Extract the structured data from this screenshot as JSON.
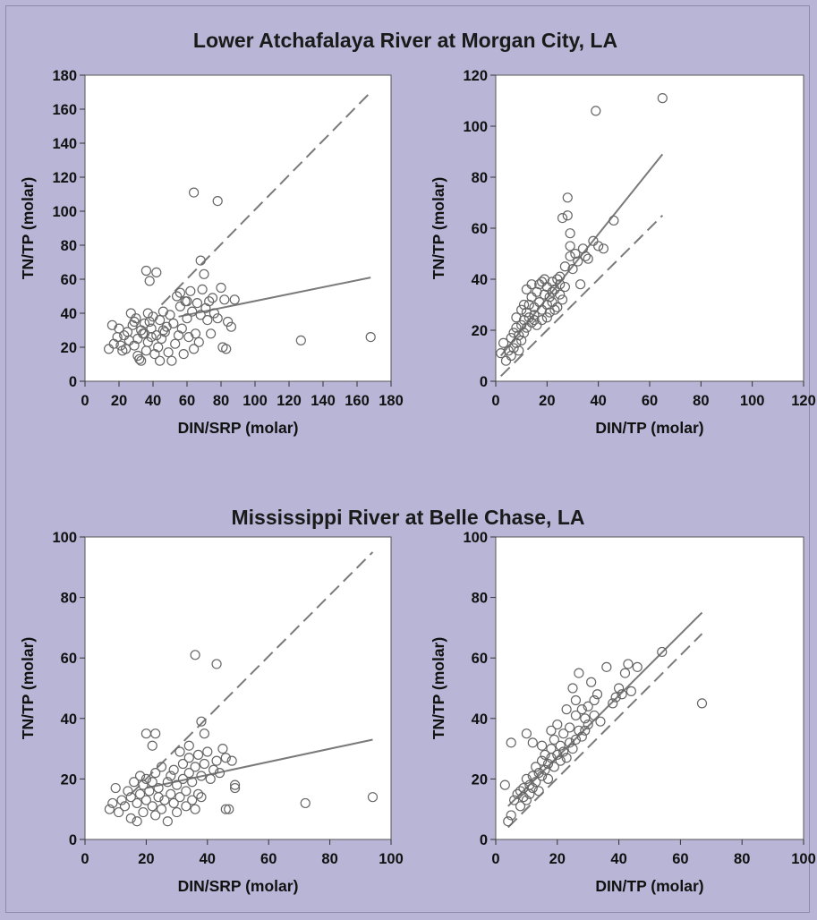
{
  "sections": [
    {
      "title": "Lower Atchafalaya River at Morgan City, LA"
    },
    {
      "title": "Mississippi River at Belle Chase, LA"
    }
  ],
  "chart_data": [
    {
      "type": "scatter",
      "xlabel": "DIN/SRP (molar)",
      "ylabel": "TN/TP (molar)",
      "xlim": [
        0,
        180
      ],
      "ylim": [
        0,
        180
      ],
      "xticks": [
        0,
        20,
        40,
        60,
        80,
        100,
        120,
        140,
        160,
        180
      ],
      "yticks": [
        0,
        20,
        40,
        60,
        80,
        100,
        120,
        140,
        160,
        180
      ],
      "grid": false,
      "points": [
        [
          14,
          19
        ],
        [
          17,
          22
        ],
        [
          19,
          26
        ],
        [
          21,
          21
        ],
        [
          23,
          27
        ],
        [
          24,
          19
        ],
        [
          16,
          33
        ],
        [
          20,
          31
        ],
        [
          25,
          29
        ],
        [
          26,
          24
        ],
        [
          28,
          33
        ],
        [
          29,
          21
        ],
        [
          30,
          37
        ],
        [
          31,
          15
        ],
        [
          32,
          13
        ],
        [
          33,
          30
        ],
        [
          34,
          28
        ],
        [
          35,
          34
        ],
        [
          36,
          18
        ],
        [
          37,
          23
        ],
        [
          38,
          35
        ],
        [
          39,
          31
        ],
        [
          40,
          38
        ],
        [
          41,
          16
        ],
        [
          42,
          27
        ],
        [
          43,
          20
        ],
        [
          44,
          36
        ],
        [
          45,
          25
        ],
        [
          46,
          41
        ],
        [
          47,
          29
        ],
        [
          48,
          32
        ],
        [
          49,
          17
        ],
        [
          50,
          39
        ],
        [
          51,
          12
        ],
        [
          52,
          34
        ],
        [
          53,
          22
        ],
        [
          54,
          50
        ],
        [
          55,
          27
        ],
        [
          56,
          44
        ],
        [
          57,
          31
        ],
        [
          58,
          16
        ],
        [
          59,
          47
        ],
        [
          60,
          37
        ],
        [
          61,
          26
        ],
        [
          62,
          53
        ],
        [
          63,
          41
        ],
        [
          64,
          19
        ],
        [
          65,
          28
        ],
        [
          66,
          46
        ],
        [
          67,
          23
        ],
        [
          68,
          39
        ],
        [
          69,
          54
        ],
        [
          70,
          63
        ],
        [
          71,
          43
        ],
        [
          72,
          36
        ],
        [
          73,
          47
        ],
        [
          74,
          28
        ],
        [
          75,
          49
        ],
        [
          76,
          40
        ],
        [
          78,
          37
        ],
        [
          80,
          55
        ],
        [
          81,
          20
        ],
        [
          82,
          48
        ],
        [
          83,
          19
        ],
        [
          84,
          35
        ],
        [
          86,
          32
        ],
        [
          88,
          48
        ],
        [
          36,
          65
        ],
        [
          42,
          64
        ],
        [
          38,
          59
        ],
        [
          64,
          111
        ],
        [
          78,
          106
        ],
        [
          68,
          71
        ],
        [
          127,
          24
        ],
        [
          168,
          26
        ],
        [
          27,
          40
        ],
        [
          22,
          18
        ],
        [
          33,
          12
        ],
        [
          44,
          12
        ],
        [
          56,
          52
        ],
        [
          60,
          47
        ],
        [
          46,
          30
        ],
        [
          35,
          28
        ],
        [
          39,
          26
        ],
        [
          31,
          25
        ],
        [
          29,
          35
        ],
        [
          37,
          40
        ]
      ],
      "lines": [
        {
          "style": "dashed",
          "from": [
            45,
            45
          ],
          "to": [
            168,
            170
          ]
        },
        {
          "style": "solid",
          "from": [
            55,
            38
          ],
          "to": [
            168,
            61
          ]
        }
      ]
    },
    {
      "type": "scatter",
      "xlabel": "DIN/TP (molar)",
      "ylabel": "TN/TP (molar)",
      "xlim": [
        0,
        120
      ],
      "ylim": [
        0,
        120
      ],
      "xticks": [
        0,
        20,
        40,
        60,
        80,
        100,
        120
      ],
      "yticks": [
        0,
        20,
        40,
        60,
        80,
        100,
        120
      ],
      "grid": false,
      "points": [
        [
          2,
          11
        ],
        [
          3,
          15
        ],
        [
          4,
          8
        ],
        [
          5,
          12
        ],
        [
          6,
          10
        ],
        [
          6,
          17
        ],
        [
          7,
          13
        ],
        [
          7,
          19
        ],
        [
          8,
          15
        ],
        [
          8,
          21
        ],
        [
          9,
          18
        ],
        [
          9,
          12
        ],
        [
          10,
          22
        ],
        [
          10,
          16
        ],
        [
          11,
          24
        ],
        [
          11,
          19
        ],
        [
          12,
          27
        ],
        [
          12,
          21
        ],
        [
          13,
          25
        ],
        [
          13,
          30
        ],
        [
          14,
          23
        ],
        [
          14,
          33
        ],
        [
          15,
          26
        ],
        [
          15,
          29
        ],
        [
          16,
          35
        ],
        [
          16,
          22
        ],
        [
          17,
          31
        ],
        [
          17,
          38
        ],
        [
          18,
          28
        ],
        [
          18,
          24
        ],
        [
          19,
          34
        ],
        [
          19,
          40
        ],
        [
          20,
          30
        ],
        [
          20,
          37
        ],
        [
          21,
          27
        ],
        [
          21,
          33
        ],
        [
          22,
          39
        ],
        [
          22,
          31
        ],
        [
          23,
          36
        ],
        [
          24,
          29
        ],
        [
          24,
          40
        ],
        [
          25,
          34
        ],
        [
          25,
          38
        ],
        [
          26,
          32
        ],
        [
          27,
          45
        ],
        [
          28,
          72
        ],
        [
          28,
          65
        ],
        [
          29,
          58
        ],
        [
          29,
          53
        ],
        [
          29,
          49
        ],
        [
          30,
          44
        ],
        [
          31,
          50
        ],
        [
          32,
          47
        ],
        [
          33,
          38
        ],
        [
          34,
          52
        ],
        [
          35,
          49
        ],
        [
          36,
          48
        ],
        [
          38,
          55
        ],
        [
          39,
          106
        ],
        [
          40,
          53
        ],
        [
          42,
          52
        ],
        [
          46,
          63
        ],
        [
          65,
          111
        ],
        [
          26,
          64
        ],
        [
          12,
          36
        ],
        [
          10,
          28
        ],
        [
          8,
          25
        ],
        [
          14,
          38
        ],
        [
          18,
          39
        ],
        [
          22,
          35
        ],
        [
          20,
          25
        ],
        [
          23,
          28
        ],
        [
          25,
          41
        ],
        [
          27,
          37
        ],
        [
          15,
          24
        ],
        [
          11,
          30
        ]
      ],
      "lines": [
        {
          "style": "dashed",
          "from": [
            2,
            2
          ],
          "to": [
            65,
            65
          ]
        },
        {
          "style": "solid",
          "from": [
            2,
            10
          ],
          "to": [
            65,
            89
          ]
        }
      ]
    },
    {
      "type": "scatter",
      "xlabel": "DIN/SRP (molar)",
      "ylabel": "TN/TP (molar)",
      "xlim": [
        0,
        100
      ],
      "ylim": [
        0,
        100
      ],
      "xticks": [
        0,
        20,
        40,
        60,
        80,
        100
      ],
      "yticks": [
        0,
        20,
        40,
        60,
        80,
        100
      ],
      "grid": false,
      "points": [
        [
          8,
          10
        ],
        [
          9,
          12
        ],
        [
          10,
          17
        ],
        [
          11,
          9
        ],
        [
          12,
          13
        ],
        [
          13,
          11
        ],
        [
          14,
          16
        ],
        [
          15,
          14
        ],
        [
          15,
          7
        ],
        [
          16,
          19
        ],
        [
          17,
          6
        ],
        [
          17,
          12
        ],
        [
          18,
          21
        ],
        [
          18,
          15
        ],
        [
          19,
          9
        ],
        [
          19,
          18
        ],
        [
          20,
          20
        ],
        [
          20,
          13
        ],
        [
          21,
          16
        ],
        [
          22,
          11
        ],
        [
          22,
          19
        ],
        [
          23,
          8
        ],
        [
          23,
          22
        ],
        [
          24,
          14
        ],
        [
          24,
          17
        ],
        [
          25,
          24
        ],
        [
          25,
          10
        ],
        [
          26,
          13
        ],
        [
          27,
          19
        ],
        [
          27,
          6
        ],
        [
          28,
          15
        ],
        [
          28,
          21
        ],
        [
          29,
          23
        ],
        [
          29,
          12
        ],
        [
          30,
          18
        ],
        [
          30,
          9
        ],
        [
          31,
          29
        ],
        [
          31,
          14
        ],
        [
          32,
          20
        ],
        [
          32,
          25
        ],
        [
          33,
          11
        ],
        [
          33,
          16
        ],
        [
          34,
          22
        ],
        [
          34,
          27
        ],
        [
          35,
          13
        ],
        [
          35,
          19
        ],
        [
          36,
          24
        ],
        [
          36,
          10
        ],
        [
          37,
          28
        ],
        [
          37,
          15
        ],
        [
          38,
          21
        ],
        [
          38,
          14
        ],
        [
          39,
          25
        ],
        [
          40,
          29
        ],
        [
          41,
          20
        ],
        [
          42,
          23
        ],
        [
          43,
          26
        ],
        [
          44,
          22
        ],
        [
          45,
          30
        ],
        [
          46,
          27
        ],
        [
          46,
          10
        ],
        [
          47,
          10
        ],
        [
          48,
          26
        ],
        [
          49,
          18
        ],
        [
          49,
          17
        ],
        [
          36,
          61
        ],
        [
          43,
          58
        ],
        [
          20,
          35
        ],
        [
          23,
          35
        ],
        [
          38,
          39
        ],
        [
          39,
          35
        ],
        [
          34,
          31
        ],
        [
          72,
          12
        ],
        [
          94,
          14
        ],
        [
          22,
          31
        ]
      ],
      "lines": [
        {
          "style": "dashed",
          "from": [
            15,
            15
          ],
          "to": [
            94,
            95
          ]
        },
        {
          "style": "solid",
          "from": [
            20,
            17
          ],
          "to": [
            94,
            33
          ]
        }
      ]
    },
    {
      "type": "scatter",
      "xlabel": "DIN/TP (molar)",
      "ylabel": "TN/TP (molar)",
      "xlim": [
        0,
        100
      ],
      "ylim": [
        0,
        100
      ],
      "xticks": [
        0,
        20,
        40,
        60,
        80,
        100
      ],
      "yticks": [
        0,
        20,
        40,
        60,
        80,
        100
      ],
      "grid": false,
      "points": [
        [
          3,
          18
        ],
        [
          4,
          6
        ],
        [
          5,
          8
        ],
        [
          5,
          32
        ],
        [
          6,
          13
        ],
        [
          7,
          15
        ],
        [
          8,
          11
        ],
        [
          8,
          16
        ],
        [
          9,
          14
        ],
        [
          9,
          17
        ],
        [
          10,
          20
        ],
        [
          10,
          13
        ],
        [
          11,
          18
        ],
        [
          11,
          15
        ],
        [
          12,
          21
        ],
        [
          12,
          17
        ],
        [
          13,
          24
        ],
        [
          13,
          19
        ],
        [
          14,
          22
        ],
        [
          14,
          16
        ],
        [
          15,
          26
        ],
        [
          15,
          21
        ],
        [
          16,
          23
        ],
        [
          16,
          28
        ],
        [
          17,
          25
        ],
        [
          17,
          20
        ],
        [
          18,
          27
        ],
        [
          18,
          30
        ],
        [
          19,
          24
        ],
        [
          19,
          33
        ],
        [
          20,
          28
        ],
        [
          21,
          26
        ],
        [
          21,
          31
        ],
        [
          22,
          29
        ],
        [
          22,
          35
        ],
        [
          23,
          27
        ],
        [
          24,
          32
        ],
        [
          24,
          37
        ],
        [
          25,
          30
        ],
        [
          25,
          50
        ],
        [
          26,
          33
        ],
        [
          26,
          46
        ],
        [
          27,
          36
        ],
        [
          27,
          55
        ],
        [
          28,
          34
        ],
        [
          28,
          43
        ],
        [
          29,
          40
        ],
        [
          30,
          38
        ],
        [
          30,
          44
        ],
        [
          31,
          52
        ],
        [
          32,
          46
        ],
        [
          33,
          48
        ],
        [
          34,
          39
        ],
        [
          36,
          57
        ],
        [
          38,
          45
        ],
        [
          39,
          47
        ],
        [
          40,
          50
        ],
        [
          41,
          48
        ],
        [
          42,
          55
        ],
        [
          43,
          58
        ],
        [
          44,
          49
        ],
        [
          46,
          57
        ],
        [
          54,
          62
        ],
        [
          67,
          45
        ],
        [
          10,
          35
        ],
        [
          12,
          32
        ],
        [
          15,
          31
        ],
        [
          18,
          36
        ],
        [
          20,
          38
        ],
        [
          23,
          43
        ],
        [
          26,
          41
        ],
        [
          29,
          36
        ],
        [
          32,
          41
        ]
      ],
      "lines": [
        {
          "style": "dashed",
          "from": [
            4,
            4
          ],
          "to": [
            67,
            68
          ]
        },
        {
          "style": "solid",
          "from": [
            4,
            11
          ],
          "to": [
            67,
            75
          ]
        }
      ]
    }
  ]
}
